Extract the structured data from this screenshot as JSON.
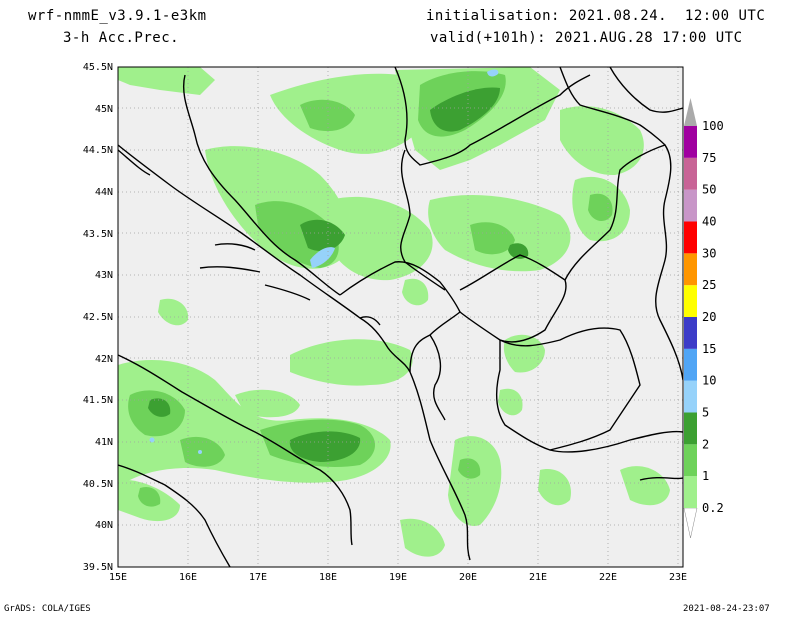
{
  "header": {
    "model": "wrf-nmmE_v3.9.1-e3km",
    "product": "3-h Acc.Prec.",
    "init": "initialisation: 2021.08.24.  12:00 UTC",
    "valid": "valid(+101h): 2021.AUG.28 17:00 UTC"
  },
  "footer": {
    "left": "GrADS: COLA/IGES",
    "right": "2021-08-24-23:07"
  },
  "axes": {
    "lat_labels": [
      "45.5N",
      "45N",
      "44.5N",
      "44N",
      "43.5N",
      "43N",
      "42.5N",
      "42N",
      "41.5N",
      "41N",
      "40.5N",
      "40N",
      "39.5N"
    ],
    "lon_labels": [
      "15E",
      "16E",
      "17E",
      "18E",
      "19E",
      "20E",
      "21E",
      "22E",
      "23E"
    ]
  },
  "legend": {
    "items": [
      {
        "label": "0.2",
        "color": "#a0f08c"
      },
      {
        "label": "1",
        "color": "#6ed25a"
      },
      {
        "label": "2",
        "color": "#3ca032"
      },
      {
        "label": "5",
        "color": "#96d2fa"
      },
      {
        "label": "10",
        "color": "#50a5f5"
      },
      {
        "label": "15",
        "color": "#3c3cc8"
      },
      {
        "label": "20",
        "color": "#ffff00"
      },
      {
        "label": "25",
        "color": "#ff9600"
      },
      {
        "label": "30",
        "color": "#ff0000"
      },
      {
        "label": "40",
        "color": "#c896c8"
      },
      {
        "label": "50",
        "color": "#c86496"
      },
      {
        "label": "75",
        "color": "#a000a0"
      },
      {
        "label": "100",
        "color": "#aaaaaa"
      }
    ]
  },
  "colors": {
    "land": "#efefef",
    "border": "#000000",
    "grid": "#a0a0a0"
  }
}
